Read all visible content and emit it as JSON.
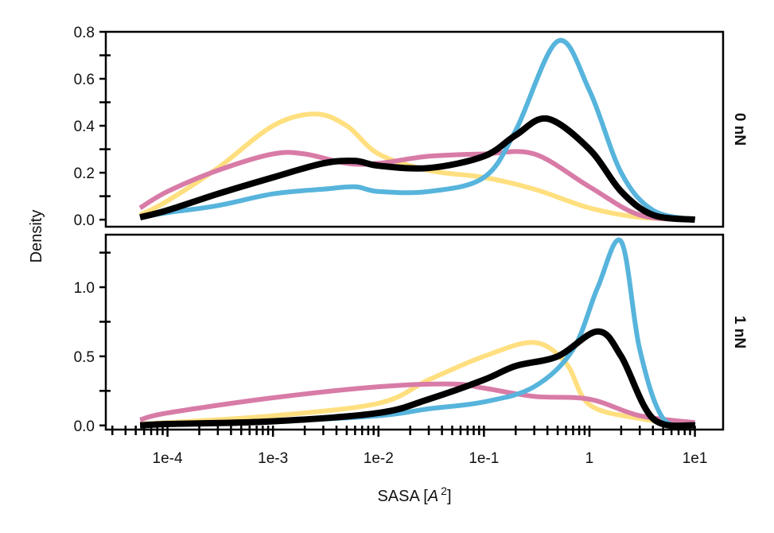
{
  "chart_data": {
    "type": "line",
    "subtype": "kde-density-faceted",
    "xlabel": "SASA [A²]",
    "xlabel_parts": {
      "prefix": "SASA [",
      "italic": "A",
      "sup": "2",
      "suffix": "]"
    },
    "ylabel": "Density",
    "xscale": "log",
    "xlim": [
      2.6e-05,
      18.5
    ],
    "x_ticks": [
      0.0001,
      0.001,
      0.01,
      0.1,
      1,
      10
    ],
    "x_tick_labels": [
      "1e-4",
      "1e-3",
      "1e-2",
      "1e-1",
      "1",
      "1e1"
    ],
    "series_styles": [
      {
        "name": "series-yellow",
        "color": "#FFDF7F"
      },
      {
        "name": "series-pink",
        "color": "#D87BA7"
      },
      {
        "name": "series-blue",
        "color": "#57B4DC"
      },
      {
        "name": "series-black",
        "color": "#000000"
      }
    ],
    "panels": [
      {
        "facet_label": "0 nN",
        "ylim": [
          -0.03,
          0.8
        ],
        "y_ticks": [
          0.0,
          0.2,
          0.4,
          0.6,
          0.8
        ],
        "y_tick_labels": [
          "0.0",
          "0.2",
          "0.4",
          "0.6",
          "0.8"
        ],
        "y_minor_ticks": [
          0.1,
          0.3,
          0.5,
          0.7
        ],
        "series": [
          {
            "name": "series-yellow",
            "x": [
              5.5e-05,
              0.0001,
              0.0003,
              0.001,
              0.0025,
              0.005,
              0.01,
              0.03,
              0.1,
              0.3,
              1,
              3,
              10
            ],
            "y": [
              0.02,
              0.08,
              0.22,
              0.4,
              0.45,
              0.4,
              0.28,
              0.21,
              0.18,
              0.13,
              0.05,
              0.01,
              0.0
            ]
          },
          {
            "name": "series-pink",
            "x": [
              5.5e-05,
              0.0001,
              0.0003,
              0.001,
              0.002,
              0.005,
              0.01,
              0.03,
              0.1,
              0.3,
              1,
              3,
              10
            ],
            "y": [
              0.05,
              0.12,
              0.21,
              0.28,
              0.28,
              0.24,
              0.24,
              0.27,
              0.28,
              0.28,
              0.14,
              0.02,
              0.0
            ]
          },
          {
            "name": "series-blue",
            "x": [
              5.5e-05,
              0.0001,
              0.0003,
              0.001,
              0.003,
              0.006,
              0.01,
              0.03,
              0.1,
              0.2,
              0.5,
              1,
              2,
              4,
              10
            ],
            "y": [
              0.01,
              0.03,
              0.06,
              0.11,
              0.13,
              0.14,
              0.12,
              0.12,
              0.18,
              0.38,
              0.76,
              0.55,
              0.2,
              0.04,
              0.0
            ]
          },
          {
            "name": "series-black",
            "x": [
              5.5e-05,
              0.0001,
              0.0003,
              0.001,
              0.003,
              0.006,
              0.01,
              0.03,
              0.1,
              0.2,
              0.4,
              1,
              2,
              4,
              10
            ],
            "y": [
              0.01,
              0.04,
              0.11,
              0.18,
              0.24,
              0.25,
              0.23,
              0.22,
              0.27,
              0.36,
              0.43,
              0.3,
              0.12,
              0.02,
              0.0
            ]
          }
        ]
      },
      {
        "facet_label": "1 nN",
        "ylim": [
          -0.03,
          1.38
        ],
        "y_ticks": [
          0.0,
          0.5,
          1.0
        ],
        "y_tick_labels": [
          "0.0",
          "0.5",
          "1.0"
        ],
        "y_minor_ticks": [
          0.25,
          0.75,
          1.25
        ],
        "series": [
          {
            "name": "series-yellow",
            "x": [
              5.5e-05,
              0.0001,
              0.001,
              0.01,
              0.03,
              0.1,
              0.3,
              0.6,
              1,
              3,
              10
            ],
            "y": [
              0.01,
              0.02,
              0.07,
              0.16,
              0.33,
              0.5,
              0.6,
              0.45,
              0.15,
              0.05,
              0.0
            ]
          },
          {
            "name": "series-pink",
            "x": [
              5.5e-05,
              0.0001,
              0.001,
              0.01,
              0.05,
              0.1,
              0.3,
              1,
              3,
              10
            ],
            "y": [
              0.04,
              0.09,
              0.2,
              0.28,
              0.3,
              0.27,
              0.21,
              0.19,
              0.07,
              0.02
            ]
          },
          {
            "name": "series-blue",
            "x": [
              5.5e-05,
              0.0001,
              0.001,
              0.01,
              0.03,
              0.1,
              0.3,
              0.7,
              1.2,
              2,
              3,
              5,
              10
            ],
            "y": [
              0.0,
              0.01,
              0.03,
              0.07,
              0.12,
              0.17,
              0.28,
              0.55,
              1.0,
              1.33,
              0.55,
              0.05,
              0.0
            ]
          },
          {
            "name": "series-black",
            "x": [
              5.5e-05,
              0.0001,
              0.001,
              0.01,
              0.03,
              0.1,
              0.2,
              0.5,
              1.2,
              2,
              4,
              10
            ],
            "y": [
              0.0,
              0.01,
              0.03,
              0.09,
              0.19,
              0.33,
              0.43,
              0.5,
              0.68,
              0.5,
              0.05,
              0.0
            ]
          }
        ]
      }
    ]
  }
}
